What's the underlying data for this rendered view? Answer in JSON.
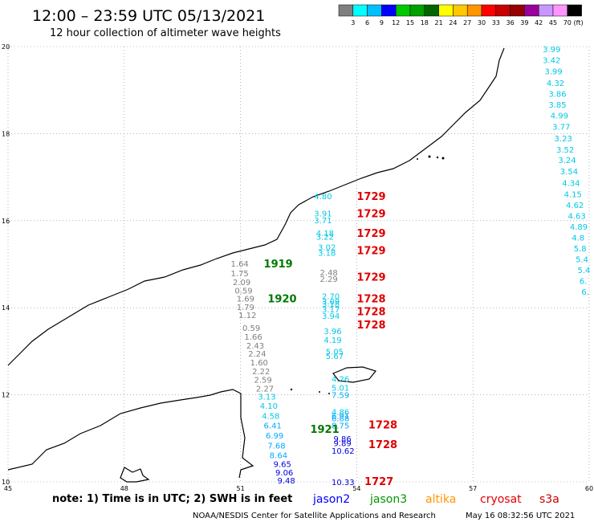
{
  "header": {
    "title": "12:00 – 23:59 UTC 05/13/2021",
    "subtitle": "12 hour collection of altimeter wave heights"
  },
  "color_scale": {
    "colors": [
      "#7f7f7f",
      "#00ffff",
      "#00bfff",
      "#0000ff",
      "#00c800",
      "#00a000",
      "#006400",
      "#ffff00",
      "#ffc800",
      "#ff9600",
      "#ff0000",
      "#c80000",
      "#960000",
      "#9b009b",
      "#c896ff",
      "#ff96ff",
      "#000000"
    ],
    "labels": [
      "3",
      "6",
      "9",
      "12",
      "15",
      "18",
      "21",
      "24",
      "27",
      "30",
      "33",
      "36",
      "39",
      "42",
      "45",
      "70"
    ],
    "unit": "(ft)"
  },
  "chart_data": {
    "type": "scatter",
    "title": "12:00 – 23:59 UTC 05/13/2021",
    "subtitle": "12 hour collection of altimeter wave heights",
    "x_ticks": [
      "45",
      "48",
      "51",
      "54",
      "57",
      "60"
    ],
    "y_ticks": [
      "20",
      "18",
      "16",
      "14",
      "12",
      "10"
    ],
    "xlim": [
      45,
      60
    ],
    "ylim": [
      10,
      20
    ],
    "series": [
      {
        "name": "jason2",
        "color": "#0000ff"
      },
      {
        "name": "jason3",
        "color": "#009600"
      },
      {
        "name": "altika",
        "color": "#ff9600"
      },
      {
        "name": "cryosat",
        "color": "#e00000"
      },
      {
        "name": "s3a",
        "color": "#c80000"
      }
    ],
    "tracks": [
      {
        "label": "1919",
        "color": "#007800",
        "lon": 51.6,
        "lat": 15.0
      },
      {
        "label": "1920",
        "color": "#007800",
        "lon": 51.7,
        "lat": 14.2
      },
      {
        "label": "1921",
        "color": "#007800",
        "lon": 52.8,
        "lat": 11.2
      },
      {
        "label": "1729",
        "color": "#e00000",
        "lon": 54.0,
        "lat": 16.55
      },
      {
        "label": "1729",
        "color": "#e00000",
        "lon": 54.0,
        "lat": 16.15
      },
      {
        "label": "1729",
        "color": "#e00000",
        "lon": 54.0,
        "lat": 15.7
      },
      {
        "label": "1729",
        "color": "#e00000",
        "lon": 54.0,
        "lat": 15.3
      },
      {
        "label": "1729",
        "color": "#e00000",
        "lon": 54.0,
        "lat": 14.7
      },
      {
        "label": "1728",
        "color": "#e00000",
        "lon": 54.0,
        "lat": 14.2
      },
      {
        "label": "1728",
        "color": "#e00000",
        "lon": 54.0,
        "lat": 13.9
      },
      {
        "label": "1728",
        "color": "#e00000",
        "lon": 54.0,
        "lat": 13.6
      },
      {
        "label": "1728",
        "color": "#e00000",
        "lon": 54.3,
        "lat": 11.3
      },
      {
        "label": "1728",
        "color": "#e00000",
        "lon": 54.3,
        "lat": 10.85
      },
      {
        "label": "1727",
        "color": "#e00000",
        "lon": 54.2,
        "lat": 10.0
      }
    ],
    "points": [
      {
        "v": "1.64",
        "lon": 50.75,
        "lat": 15.0,
        "c": "#7f7f7f"
      },
      {
        "v": "1.75",
        "lon": 50.75,
        "lat": 14.78,
        "c": "#7f7f7f"
      },
      {
        "v": "2.09",
        "lon": 50.8,
        "lat": 14.58,
        "c": "#7f7f7f"
      },
      {
        "v": "0.59",
        "lon": 50.85,
        "lat": 14.38,
        "c": "#7f7f7f"
      },
      {
        "v": "1.69",
        "lon": 50.9,
        "lat": 14.2,
        "c": "#7f7f7f"
      },
      {
        "v": "1.79",
        "lon": 50.9,
        "lat": 14.0,
        "c": "#7f7f7f"
      },
      {
        "v": "1.12",
        "lon": 50.95,
        "lat": 13.82,
        "c": "#7f7f7f"
      },
      {
        "v": "0.59",
        "lon": 51.05,
        "lat": 13.52,
        "c": "#7f7f7f"
      },
      {
        "v": "1.66",
        "lon": 51.1,
        "lat": 13.32,
        "c": "#7f7f7f"
      },
      {
        "v": "2.43",
        "lon": 51.15,
        "lat": 13.12,
        "c": "#7f7f7f"
      },
      {
        "v": "2.24",
        "lon": 51.2,
        "lat": 12.93,
        "c": "#7f7f7f"
      },
      {
        "v": "1.60",
        "lon": 51.25,
        "lat": 12.73,
        "c": "#7f7f7f"
      },
      {
        "v": "2.22",
        "lon": 51.3,
        "lat": 12.53,
        "c": "#7f7f7f"
      },
      {
        "v": "2.59",
        "lon": 51.35,
        "lat": 12.33,
        "c": "#7f7f7f"
      },
      {
        "v": "2.27",
        "lon": 51.4,
        "lat": 12.13,
        "c": "#7f7f7f"
      },
      {
        "v": "3.13",
        "lon": 51.45,
        "lat": 11.95,
        "c": "#00c8e6"
      },
      {
        "v": "4.10",
        "lon": 51.5,
        "lat": 11.73,
        "c": "#00c8e6"
      },
      {
        "v": "4.58",
        "lon": 51.55,
        "lat": 11.5,
        "c": "#00c8e6"
      },
      {
        "v": "6.41",
        "lon": 51.6,
        "lat": 11.28,
        "c": "#00aaff"
      },
      {
        "v": "6.99",
        "lon": 51.65,
        "lat": 11.05,
        "c": "#00aaff"
      },
      {
        "v": "7.68",
        "lon": 51.7,
        "lat": 10.82,
        "c": "#00aaff"
      },
      {
        "v": "8.64",
        "lon": 51.75,
        "lat": 10.6,
        "c": "#00aaff"
      },
      {
        "v": "9.65",
        "lon": 51.85,
        "lat": 10.4,
        "c": "#0000dc"
      },
      {
        "v": "9.06",
        "lon": 51.9,
        "lat": 10.2,
        "c": "#0000dc"
      },
      {
        "v": "9.48",
        "lon": 51.95,
        "lat": 10.02,
        "c": "#0000dc"
      },
      {
        "v": "2.48",
        "lon": 53.05,
        "lat": 14.8,
        "c": "#7f7f7f"
      },
      {
        "v": "2.29",
        "lon": 53.05,
        "lat": 14.65,
        "c": "#7f7f7f"
      },
      {
        "v": "4.80",
        "lon": 52.9,
        "lat": 16.55,
        "c": "#00c8e6"
      },
      {
        "v": "3.91",
        "lon": 52.9,
        "lat": 16.15,
        "c": "#00c8e6"
      },
      {
        "v": "3.71",
        "lon": 52.9,
        "lat": 16.0,
        "c": "#00c8e6"
      },
      {
        "v": "4.18",
        "lon": 52.95,
        "lat": 15.7,
        "c": "#00c8e6"
      },
      {
        "v": "3.22",
        "lon": 52.95,
        "lat": 15.62,
        "c": "#00c8e6"
      },
      {
        "v": "3.02",
        "lon": 53.0,
        "lat": 15.38,
        "c": "#00c8e6"
      },
      {
        "v": "3.18",
        "lon": 53.0,
        "lat": 15.25,
        "c": "#00c8e6"
      },
      {
        "v": "2.70",
        "lon": 53.1,
        "lat": 14.25,
        "c": "#00c8e6"
      },
      {
        "v": "3.09",
        "lon": 53.1,
        "lat": 14.13,
        "c": "#00c8e6"
      },
      {
        "v": "3.18",
        "lon": 53.1,
        "lat": 14.08,
        "c": "#00c8e6"
      },
      {
        "v": "3.17",
        "lon": 53.1,
        "lat": 13.95,
        "c": "#00c8e6"
      },
      {
        "v": "3.94",
        "lon": 53.1,
        "lat": 13.8,
        "c": "#00c8e6"
      },
      {
        "v": "3.96",
        "lon": 53.15,
        "lat": 13.45,
        "c": "#00c8e6"
      },
      {
        "v": "4.19",
        "lon": 53.15,
        "lat": 13.25,
        "c": "#00c8e6"
      },
      {
        "v": "5.05",
        "lon": 53.2,
        "lat": 12.98,
        "c": "#00c8e6"
      },
      {
        "v": "5.67",
        "lon": 53.2,
        "lat": 12.88,
        "c": "#00c8e6"
      },
      {
        "v": "4.26",
        "lon": 53.35,
        "lat": 12.35,
        "c": "#00c8e6"
      },
      {
        "v": "5.01",
        "lon": 53.35,
        "lat": 12.15,
        "c": "#00c8e6"
      },
      {
        "v": "7.59",
        "lon": 53.35,
        "lat": 11.98,
        "c": "#00aaff"
      },
      {
        "v": "4.86",
        "lon": 53.35,
        "lat": 11.6,
        "c": "#00c8e6"
      },
      {
        "v": "6.91",
        "lon": 53.35,
        "lat": 11.5,
        "c": "#00aaff"
      },
      {
        "v": "6.88",
        "lon": 53.35,
        "lat": 11.45,
        "c": "#00aaff"
      },
      {
        "v": "8.75",
        "lon": 53.35,
        "lat": 11.28,
        "c": "#00aaff"
      },
      {
        "v": "9.86",
        "lon": 53.4,
        "lat": 10.98,
        "c": "#0000dc"
      },
      {
        "v": "9.89",
        "lon": 53.4,
        "lat": 10.88,
        "c": "#0000dc"
      },
      {
        "v": "10.62",
        "lon": 53.35,
        "lat": 10.7,
        "c": "#0000dc"
      },
      {
        "v": "10.33",
        "lon": 53.35,
        "lat": 9.98,
        "c": "#0000dc"
      },
      {
        "v": "3.99",
        "lon": 58.8,
        "lat": 19.93,
        "c": "#00c8e6"
      },
      {
        "v": "3.42",
        "lon": 58.8,
        "lat": 19.68,
        "c": "#00c8e6"
      },
      {
        "v": "3.99",
        "lon": 58.85,
        "lat": 19.42,
        "c": "#00c8e6"
      },
      {
        "v": "4.32",
        "lon": 58.9,
        "lat": 19.15,
        "c": "#00c8e6"
      },
      {
        "v": "3.86",
        "lon": 58.95,
        "lat": 18.9,
        "c": "#00c8e6"
      },
      {
        "v": "3.85",
        "lon": 58.95,
        "lat": 18.65,
        "c": "#00c8e6"
      },
      {
        "v": "4.99",
        "lon": 59.0,
        "lat": 18.4,
        "c": "#00c8e6"
      },
      {
        "v": "3.77",
        "lon": 59.05,
        "lat": 18.15,
        "c": "#00c8e6"
      },
      {
        "v": "3.23",
        "lon": 59.1,
        "lat": 17.88,
        "c": "#00c8e6"
      },
      {
        "v": "3.52",
        "lon": 59.15,
        "lat": 17.62,
        "c": "#00c8e6"
      },
      {
        "v": "3.24",
        "lon": 59.2,
        "lat": 17.38,
        "c": "#00c8e6"
      },
      {
        "v": "3.54",
        "lon": 59.25,
        "lat": 17.12,
        "c": "#00c8e6"
      },
      {
        "v": "4.34",
        "lon": 59.3,
        "lat": 16.85,
        "c": "#00c8e6"
      },
      {
        "v": "4.15",
        "lon": 59.35,
        "lat": 16.6,
        "c": "#00c8e6"
      },
      {
        "v": "4.62",
        "lon": 59.4,
        "lat": 16.35,
        "c": "#00c8e6"
      },
      {
        "v": "4.63",
        "lon": 59.45,
        "lat": 16.1,
        "c": "#00c8e6"
      },
      {
        "v": "4.89",
        "lon": 59.5,
        "lat": 15.85,
        "c": "#00c8e6"
      },
      {
        "v": "4.8",
        "lon": 59.55,
        "lat": 15.6,
        "c": "#00c8e6"
      },
      {
        "v": "5.8",
        "lon": 59.6,
        "lat": 15.35,
        "c": "#00c8e6"
      },
      {
        "v": "5.4",
        "lon": 59.65,
        "lat": 15.1,
        "c": "#00c8e6"
      },
      {
        "v": "5.4",
        "lon": 59.7,
        "lat": 14.85,
        "c": "#00c8e6"
      },
      {
        "v": "6.",
        "lon": 59.75,
        "lat": 14.6,
        "c": "#00c8e6"
      },
      {
        "v": "6.",
        "lon": 59.8,
        "lat": 14.35,
        "c": "#00c8e6"
      }
    ]
  },
  "legend": {
    "note": "note:  1) Time is in UTC;  2) SWH is in feet",
    "items": [
      {
        "label": "jason2",
        "color": "#0000ff"
      },
      {
        "label": "jason3",
        "color": "#009600"
      },
      {
        "label": "altika",
        "color": "#ff9600"
      },
      {
        "label": "cryosat",
        "color": "#e00000"
      },
      {
        "label": "s3a",
        "color": "#c80000"
      }
    ]
  },
  "footer": {
    "credit": "NOAA/NESDIS Center for Satellite Applications and Research",
    "timestamp": "May 16 08:32:56 UTC 2021"
  }
}
